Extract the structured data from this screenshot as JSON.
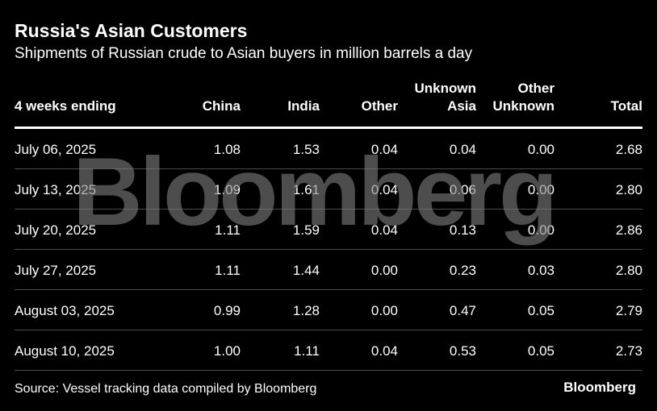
{
  "chart_data": {
    "type": "table",
    "title": "Russia's Asian Customers",
    "subtitle": "Shipments of Russian crude to Asian buyers in million barrels a day",
    "columns": [
      {
        "line1": "",
        "line2": "4 weeks ending"
      },
      {
        "line1": "",
        "line2": "China"
      },
      {
        "line1": "",
        "line2": "India"
      },
      {
        "line1": "",
        "line2": "Other"
      },
      {
        "line1": "Unknown",
        "line2": "Asia"
      },
      {
        "line1": "Other",
        "line2": "Unknown"
      },
      {
        "line1": "",
        "line2": "Total"
      }
    ],
    "rows": [
      [
        "July 06, 2025",
        "1.08",
        "1.53",
        "0.04",
        "0.04",
        "0.00",
        "2.68"
      ],
      [
        "July 13, 2025",
        "1.09",
        "1.61",
        "0.04",
        "0.06",
        "0.00",
        "2.80"
      ],
      [
        "July 20, 2025",
        "1.11",
        "1.59",
        "0.04",
        "0.13",
        "0.00",
        "2.86"
      ],
      [
        "July 27, 2025",
        "1.11",
        "1.44",
        "0.00",
        "0.23",
        "0.03",
        "2.80"
      ],
      [
        "August 03, 2025",
        "0.99",
        "1.28",
        "0.00",
        "0.47",
        "0.05",
        "2.79"
      ],
      [
        "August 10, 2025",
        "1.00",
        "1.11",
        "0.04",
        "0.53",
        "0.05",
        "2.73"
      ]
    ],
    "source": "Source: Vessel tracking data compiled by Bloomberg"
  },
  "watermark": "Bloomberg",
  "brand": "Bloomberg",
  "colors": {
    "background": "#000000",
    "text": "#ffffff",
    "watermark": "#808080",
    "row_divider": "#4a4a4a"
  }
}
